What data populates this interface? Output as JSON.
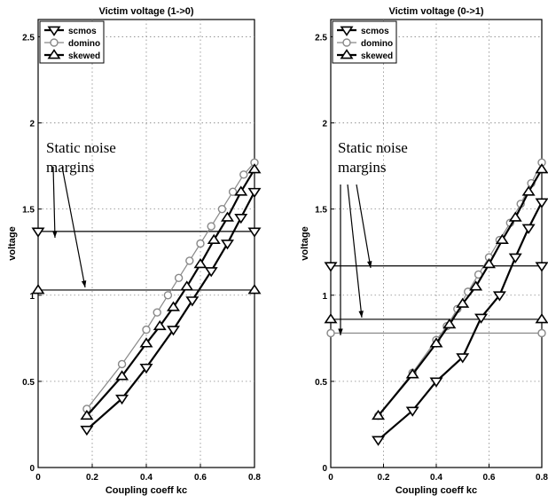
{
  "chart_data": [
    {
      "type": "line",
      "title": "Victim voltage (1->0)",
      "xlabel": "Coupling coeff kc",
      "ylabel": "voltage",
      "xlim": [
        0,
        0.8
      ],
      "ylim": [
        0,
        2.6
      ],
      "x_ticks": [
        "0",
        "0.2",
        "0.4",
        "0.6",
        "0.8"
      ],
      "y_ticks": [
        "0",
        "0.5",
        "1",
        "1.5",
        "2",
        "2.5"
      ],
      "grid": true,
      "legend_position": "top-left",
      "series": [
        {
          "name": "scmos",
          "marker": "triangle-down",
          "color": "#000000",
          "x": [
            0.18,
            0.31,
            0.4,
            0.5,
            0.57,
            0.64,
            0.7,
            0.75,
            0.8
          ],
          "y": [
            0.22,
            0.4,
            0.58,
            0.8,
            0.97,
            1.14,
            1.3,
            1.45,
            1.6
          ]
        },
        {
          "name": "domino",
          "marker": "circle",
          "color": "#888888",
          "x": [
            0.18,
            0.31,
            0.4,
            0.44,
            0.48,
            0.52,
            0.56,
            0.6,
            0.64,
            0.68,
            0.72,
            0.76,
            0.8
          ],
          "y": [
            0.34,
            0.6,
            0.8,
            0.9,
            1.0,
            1.1,
            1.2,
            1.3,
            1.4,
            1.5,
            1.6,
            1.7,
            1.77
          ]
        },
        {
          "name": "skewed",
          "marker": "triangle-up",
          "color": "#000000",
          "x": [
            0.18,
            0.31,
            0.4,
            0.45,
            0.5,
            0.55,
            0.6,
            0.65,
            0.7,
            0.75,
            0.8
          ],
          "y": [
            0.3,
            0.53,
            0.72,
            0.82,
            0.93,
            1.05,
            1.18,
            1.32,
            1.45,
            1.6,
            1.73
          ]
        }
      ],
      "reference_lines": [
        {
          "y": 1.37,
          "marker": "triangle-down"
        },
        {
          "y": 1.03,
          "marker": "triangle-up"
        }
      ],
      "annotation": {
        "lines": [
          "Static noise",
          "margins"
        ]
      }
    },
    {
      "type": "line",
      "title": "Victim voltage (0->1)",
      "xlabel": "Coupling coeff kc",
      "ylabel": "voltage",
      "xlim": [
        0,
        0.8
      ],
      "ylim": [
        0,
        2.6
      ],
      "x_ticks": [
        "0",
        "0.2",
        "0.4",
        "0.6",
        "0.8"
      ],
      "y_ticks": [
        "0",
        "0.5",
        "1",
        "1.5",
        "2",
        "2.5"
      ],
      "grid": true,
      "legend_position": "top-left",
      "series": [
        {
          "name": "scmos",
          "marker": "triangle-down",
          "color": "#000000",
          "x": [
            0.18,
            0.31,
            0.4,
            0.5,
            0.57,
            0.64,
            0.7,
            0.75,
            0.8
          ],
          "y": [
            0.16,
            0.33,
            0.5,
            0.64,
            0.87,
            1.0,
            1.22,
            1.39,
            1.54
          ]
        },
        {
          "name": "domino",
          "marker": "circle",
          "color": "#888888",
          "x": [
            0.18,
            0.31,
            0.4,
            0.44,
            0.48,
            0.52,
            0.56,
            0.6,
            0.64,
            0.68,
            0.72,
            0.76,
            0.8
          ],
          "y": [
            0.3,
            0.55,
            0.74,
            0.82,
            0.92,
            1.02,
            1.12,
            1.22,
            1.32,
            1.42,
            1.53,
            1.65,
            1.77
          ]
        },
        {
          "name": "skewed",
          "marker": "triangle-up",
          "color": "#000000",
          "x": [
            0.18,
            0.31,
            0.4,
            0.45,
            0.5,
            0.55,
            0.6,
            0.65,
            0.7,
            0.75,
            0.8
          ],
          "y": [
            0.3,
            0.54,
            0.72,
            0.83,
            0.95,
            1.05,
            1.18,
            1.32,
            1.45,
            1.6,
            1.73
          ]
        }
      ],
      "reference_lines": [
        {
          "y": 1.17,
          "marker": "triangle-down"
        },
        {
          "y": 0.86,
          "marker": "triangle-up"
        },
        {
          "y": 0.78,
          "marker": "circle",
          "color": "#888888"
        }
      ],
      "annotation": {
        "lines": [
          "Static noise",
          "margins"
        ]
      }
    }
  ]
}
